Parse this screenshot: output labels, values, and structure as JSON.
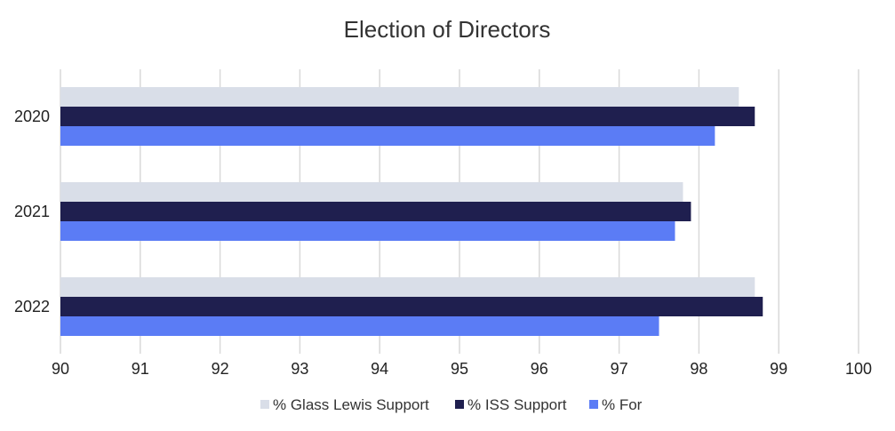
{
  "chart_data": {
    "type": "bar",
    "orientation": "horizontal",
    "title": "Election of Directors",
    "xlabel": "",
    "ylabel": "",
    "xlim": [
      90,
      100
    ],
    "x_ticks": [
      "90",
      "91",
      "92",
      "93",
      "94",
      "95",
      "96",
      "97",
      "98",
      "99",
      "100"
    ],
    "grid": "vertical",
    "legend_position": "bottom",
    "categories": [
      "2020",
      "2021",
      "2022"
    ],
    "series": [
      {
        "name": "% Glass Lewis Support",
        "color": "#d9dee8",
        "values": [
          98.5,
          97.8,
          98.7
        ]
      },
      {
        "name": "% ISS Support",
        "color": "#1f1f4f",
        "values": [
          98.7,
          97.9,
          98.8
        ]
      },
      {
        "name": "% For",
        "color": "#5b7cf5",
        "values": [
          98.2,
          97.7,
          97.5
        ]
      }
    ]
  }
}
